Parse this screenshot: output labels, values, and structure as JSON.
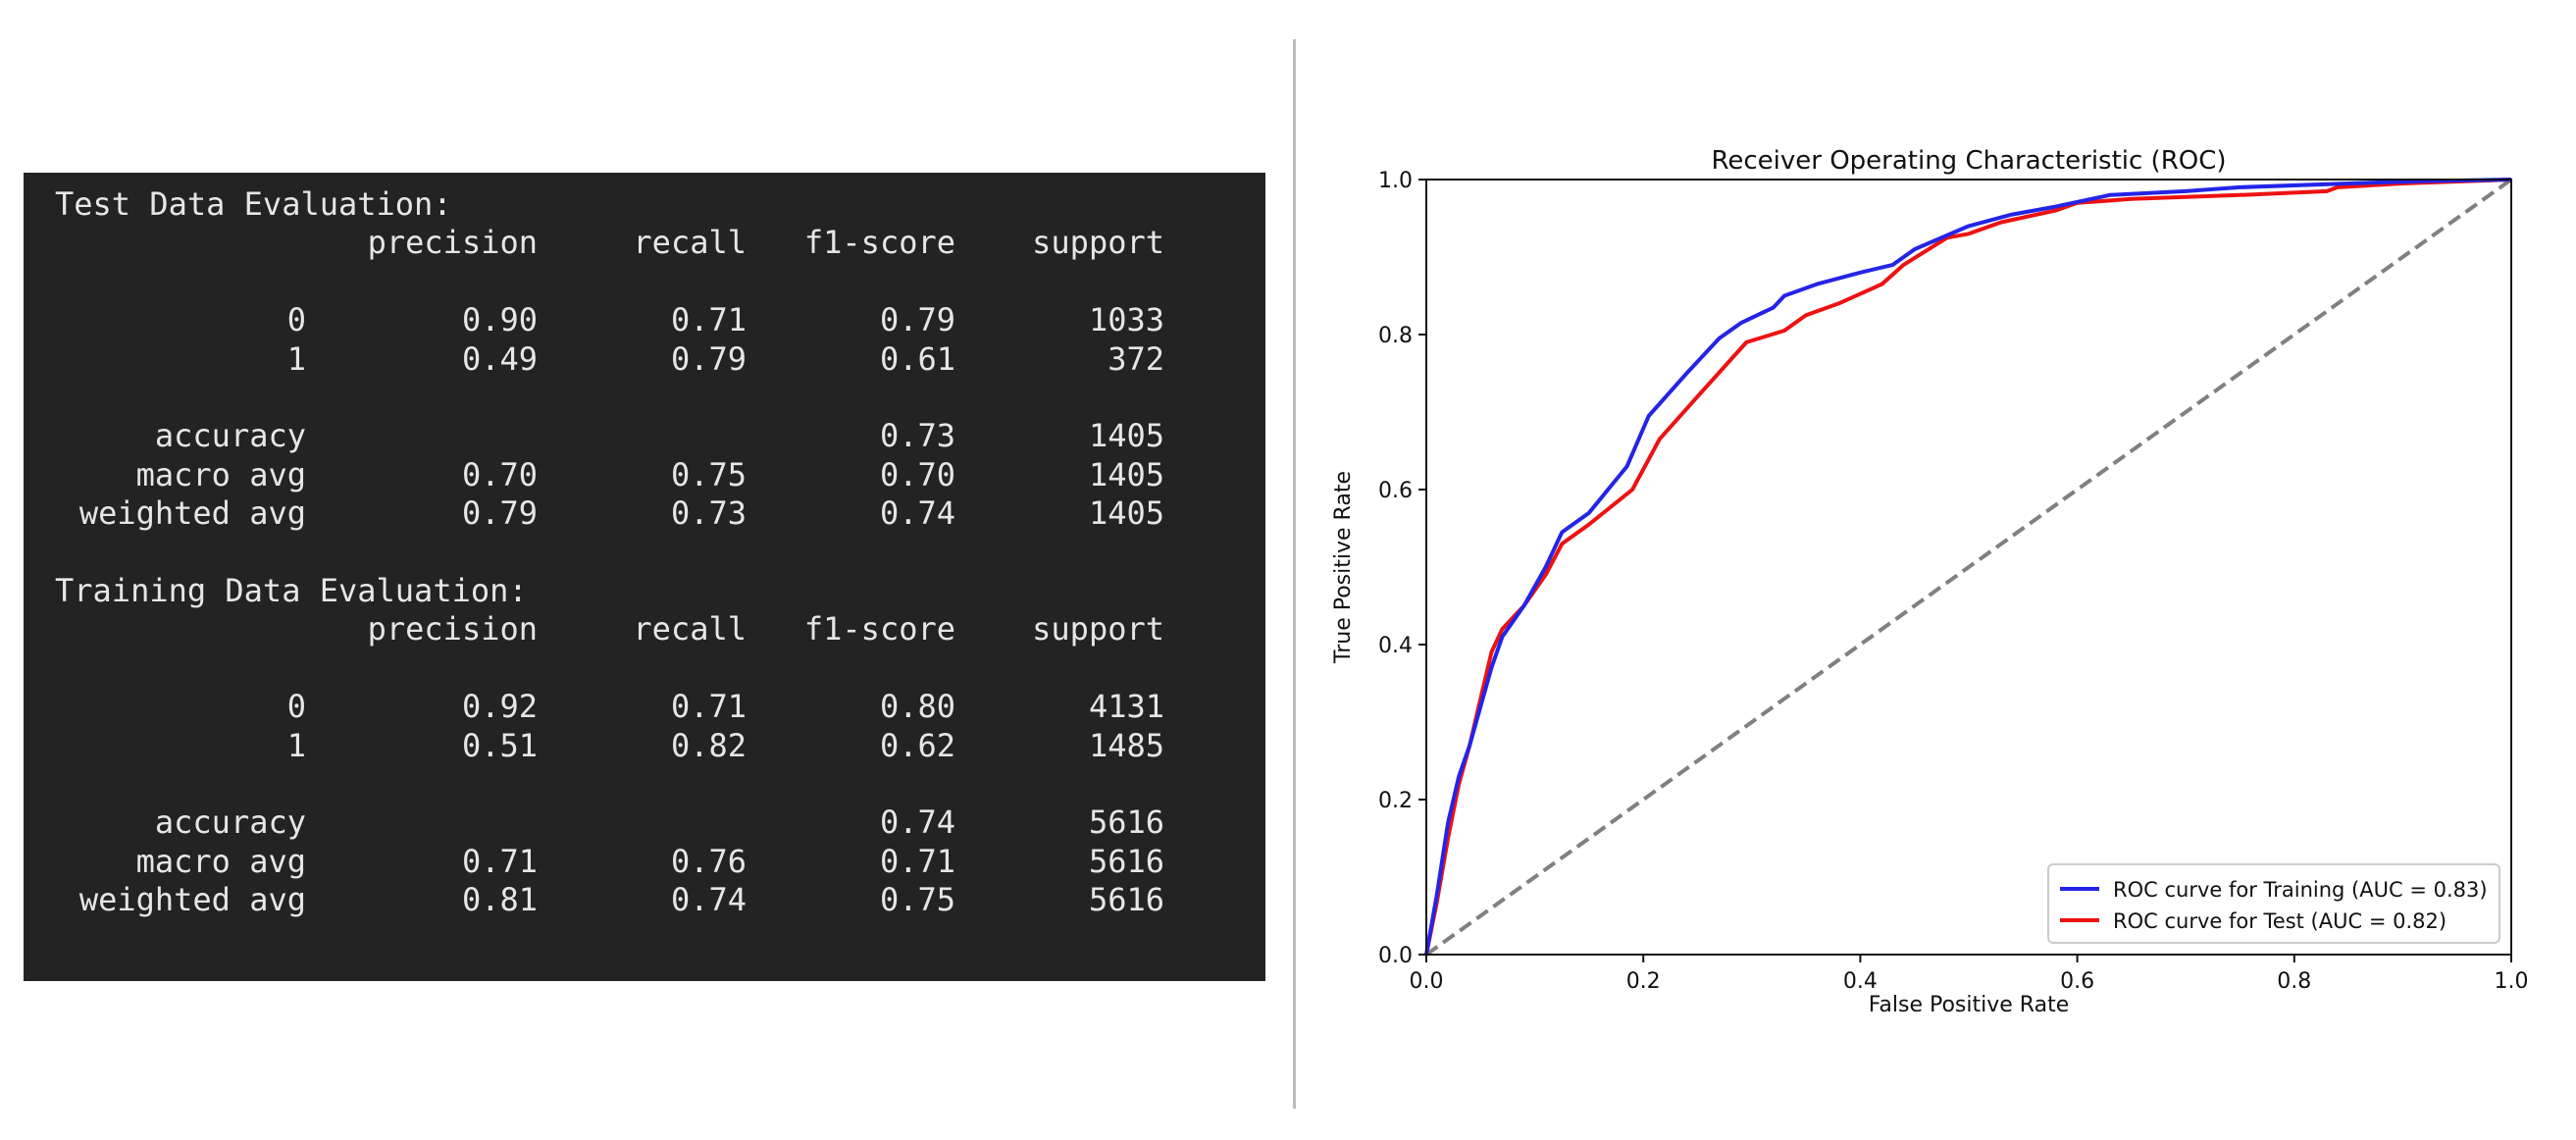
{
  "report": {
    "test": {
      "heading": "Test Data Evaluation:",
      "columns": [
        "precision",
        "recall",
        "f1-score",
        "support"
      ],
      "rows": [
        {
          "label": "0",
          "precision": "0.90",
          "recall": "0.71",
          "f1": "0.79",
          "support": "1033"
        },
        {
          "label": "1",
          "precision": "0.49",
          "recall": "0.79",
          "f1": "0.61",
          "support": "372"
        },
        {
          "label": "accuracy",
          "precision": "",
          "recall": "",
          "f1": "0.73",
          "support": "1405"
        },
        {
          "label": "macro avg",
          "precision": "0.70",
          "recall": "0.75",
          "f1": "0.70",
          "support": "1405"
        },
        {
          "label": "weighted avg",
          "precision": "0.79",
          "recall": "0.73",
          "f1": "0.74",
          "support": "1405"
        }
      ]
    },
    "training": {
      "heading": "Training Data Evaluation:",
      "columns": [
        "precision",
        "recall",
        "f1-score",
        "support"
      ],
      "rows": [
        {
          "label": "0",
          "precision": "0.92",
          "recall": "0.71",
          "f1": "0.80",
          "support": "4131"
        },
        {
          "label": "1",
          "precision": "0.51",
          "recall": "0.82",
          "f1": "0.62",
          "support": "1485"
        },
        {
          "label": "accuracy",
          "precision": "",
          "recall": "",
          "f1": "0.74",
          "support": "5616"
        },
        {
          "label": "macro avg",
          "precision": "0.71",
          "recall": "0.76",
          "f1": "0.71",
          "support": "5616"
        },
        {
          "label": "weighted avg",
          "precision": "0.81",
          "recall": "0.74",
          "f1": "0.75",
          "support": "5616"
        }
      ]
    }
  },
  "chart_data": {
    "type": "line",
    "title": "Receiver Operating Characteristic (ROC)",
    "xlabel": "False Positive Rate",
    "ylabel": "True Positive Rate",
    "xlim": [
      0.0,
      1.0
    ],
    "ylim": [
      0.0,
      1.0
    ],
    "xticks": [
      "0.0",
      "0.2",
      "0.4",
      "0.6",
      "0.8",
      "1.0"
    ],
    "yticks": [
      "0.0",
      "0.2",
      "0.4",
      "0.6",
      "0.8",
      "1.0"
    ],
    "grid": false,
    "legend": "lower-right",
    "series": [
      {
        "name": "ROC curve for Training (AUC = 0.83)",
        "color": "#2424e8",
        "style": "solid",
        "points": [
          [
            0,
            0
          ],
          [
            0.01,
            0.08
          ],
          [
            0.02,
            0.17
          ],
          [
            0.03,
            0.23
          ],
          [
            0.04,
            0.27
          ],
          [
            0.05,
            0.32
          ],
          [
            0.06,
            0.37
          ],
          [
            0.07,
            0.41
          ],
          [
            0.09,
            0.45
          ],
          [
            0.11,
            0.5
          ],
          [
            0.125,
            0.545
          ],
          [
            0.15,
            0.57
          ],
          [
            0.185,
            0.63
          ],
          [
            0.205,
            0.695
          ],
          [
            0.24,
            0.75
          ],
          [
            0.27,
            0.795
          ],
          [
            0.29,
            0.815
          ],
          [
            0.32,
            0.835
          ],
          [
            0.33,
            0.85
          ],
          [
            0.36,
            0.865
          ],
          [
            0.4,
            0.88
          ],
          [
            0.43,
            0.89
          ],
          [
            0.45,
            0.91
          ],
          [
            0.5,
            0.94
          ],
          [
            0.54,
            0.955
          ],
          [
            0.58,
            0.965
          ],
          [
            0.63,
            0.98
          ],
          [
            0.7,
            0.985
          ],
          [
            0.75,
            0.99
          ],
          [
            0.85,
            0.995
          ],
          [
            0.92,
            0.998
          ],
          [
            1.0,
            1.0
          ]
        ]
      },
      {
        "name": "ROC curve for Test (AUC = 0.82)",
        "color": "#ee1111",
        "style": "solid",
        "points": [
          [
            0,
            0
          ],
          [
            0.01,
            0.07
          ],
          [
            0.02,
            0.15
          ],
          [
            0.03,
            0.22
          ],
          [
            0.04,
            0.27
          ],
          [
            0.05,
            0.33
          ],
          [
            0.06,
            0.39
          ],
          [
            0.07,
            0.42
          ],
          [
            0.09,
            0.45
          ],
          [
            0.11,
            0.49
          ],
          [
            0.125,
            0.53
          ],
          [
            0.15,
            0.555
          ],
          [
            0.19,
            0.6
          ],
          [
            0.215,
            0.665
          ],
          [
            0.25,
            0.72
          ],
          [
            0.295,
            0.79
          ],
          [
            0.33,
            0.805
          ],
          [
            0.35,
            0.825
          ],
          [
            0.38,
            0.84
          ],
          [
            0.42,
            0.865
          ],
          [
            0.44,
            0.89
          ],
          [
            0.48,
            0.925
          ],
          [
            0.5,
            0.93
          ],
          [
            0.53,
            0.945
          ],
          [
            0.58,
            0.96
          ],
          [
            0.6,
            0.97
          ],
          [
            0.65,
            0.975
          ],
          [
            0.75,
            0.98
          ],
          [
            0.83,
            0.985
          ],
          [
            0.84,
            0.99
          ],
          [
            0.9,
            0.995
          ],
          [
            1.0,
            1.0
          ]
        ]
      },
      {
        "name": "",
        "color": "#808080",
        "style": "dashed",
        "points": [
          [
            0,
            0
          ],
          [
            1,
            1
          ]
        ]
      }
    ]
  }
}
